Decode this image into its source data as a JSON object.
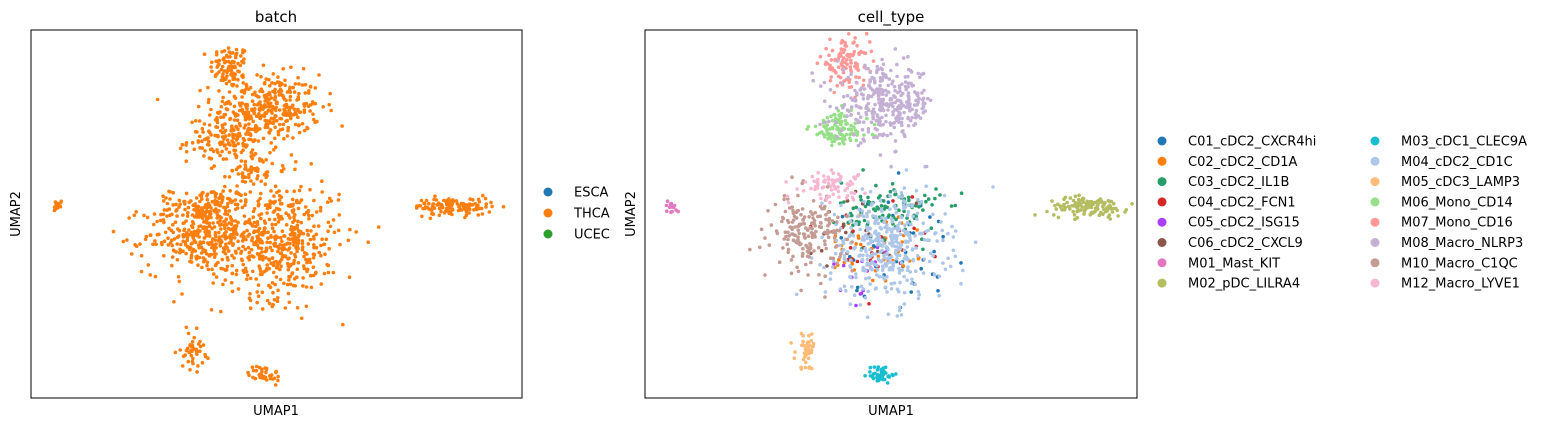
{
  "chart_data": [
    {
      "type": "scatter",
      "title": "batch",
      "xlabel": "UMAP1",
      "ylabel": "UMAP2",
      "xlim": [
        0,
        10
      ],
      "ylim": [
        0,
        10
      ],
      "grid": false,
      "legend_position": "right",
      "series": [
        {
          "name": "ESCA",
          "color": "#1f77b4",
          "clusters": []
        },
        {
          "name": "THCA",
          "color": "#ff7f0e",
          "clusters": [
            {
              "cx": 4.05,
              "cy": 9.0,
              "sx": 0.2,
              "sy": 0.3,
              "n": 90
            },
            {
              "cx": 4.8,
              "cy": 7.9,
              "sx": 0.55,
              "sy": 0.45,
              "n": 330
            },
            {
              "cx": 4.1,
              "cy": 7.0,
              "sx": 0.45,
              "sy": 0.3,
              "n": 160
            },
            {
              "cx": 4.5,
              "cy": 6.2,
              "sx": 0.2,
              "sy": 0.2,
              "n": 40
            },
            {
              "cx": 3.65,
              "cy": 5.2,
              "sx": 0.4,
              "sy": 0.25,
              "n": 110
            },
            {
              "cx": 3.4,
              "cy": 4.4,
              "sx": 0.55,
              "sy": 0.5,
              "n": 300
            },
            {
              "cx": 5.0,
              "cy": 4.3,
              "sx": 0.65,
              "sy": 0.8,
              "n": 520
            },
            {
              "cx": 0.55,
              "cy": 5.2,
              "sx": 0.07,
              "sy": 0.08,
              "n": 14
            },
            {
              "cx": 8.6,
              "cy": 5.2,
              "sx": 0.4,
              "sy": 0.12,
              "n": 120
            },
            {
              "cx": 3.3,
              "cy": 1.3,
              "sx": 0.12,
              "sy": 0.25,
              "n": 45
            },
            {
              "cx": 4.75,
              "cy": 0.65,
              "sx": 0.16,
              "sy": 0.12,
              "n": 40
            }
          ]
        },
        {
          "name": "UCEC",
          "color": "#2ca02c",
          "clusters": []
        }
      ]
    },
    {
      "type": "scatter",
      "title": "cell_type",
      "xlabel": "UMAP1",
      "ylabel": "UMAP2",
      "xlim": [
        0,
        10
      ],
      "ylim": [
        0,
        10
      ],
      "grid": false,
      "legend_position": "right",
      "legend_columns": 2,
      "series": [
        {
          "name": "C01_cDC2_CXCR4hi",
          "color": "#1f77b4",
          "clusters": [
            {
              "cx": 5.1,
              "cy": 4.1,
              "sx": 0.6,
              "sy": 0.7,
              "n": 50
            }
          ]
        },
        {
          "name": "C02_cDC2_CD1A",
          "color": "#ff7f0e",
          "clusters": [
            {
              "cx": 4.6,
              "cy": 4.0,
              "sx": 0.6,
              "sy": 0.7,
              "n": 45
            }
          ]
        },
        {
          "name": "C03_cDC2_IL1B",
          "color": "#279e68",
          "clusters": [
            {
              "cx": 5.0,
              "cy": 5.1,
              "sx": 0.5,
              "sy": 0.4,
              "n": 110
            }
          ]
        },
        {
          "name": "C04_cDC2_FCN1",
          "color": "#d62728",
          "clusters": [
            {
              "cx": 4.5,
              "cy": 4.3,
              "sx": 0.6,
              "sy": 0.6,
              "n": 25
            }
          ]
        },
        {
          "name": "C05_cDC2_ISG15",
          "color": "#aa40fc",
          "clusters": [
            {
              "cx": 4.6,
              "cy": 3.5,
              "sx": 0.4,
              "sy": 0.4,
              "n": 15
            }
          ]
        },
        {
          "name": "C06_cDC2_CXCL9",
          "color": "#8c564b",
          "clusters": [
            {
              "cx": 4.3,
              "cy": 4.6,
              "sx": 0.5,
              "sy": 0.6,
              "n": 20
            }
          ]
        },
        {
          "name": "M01_Mast_KIT",
          "color": "#e377c2",
          "clusters": [
            {
              "cx": 0.55,
              "cy": 5.2,
              "sx": 0.07,
              "sy": 0.08,
              "n": 16
            }
          ]
        },
        {
          "name": "M02_pDC_LILRA4",
          "color": "#b5bd61",
          "clusters": [
            {
              "cx": 9.0,
              "cy": 5.2,
              "sx": 0.4,
              "sy": 0.13,
              "n": 130
            }
          ]
        },
        {
          "name": "M03_cDC1_CLEC9A",
          "color": "#17becf",
          "clusters": [
            {
              "cx": 4.8,
              "cy": 0.65,
              "sx": 0.14,
              "sy": 0.12,
              "n": 45
            }
          ]
        },
        {
          "name": "M04_cDC2_CD1C",
          "color": "#aec7e8",
          "clusters": [
            {
              "cx": 4.9,
              "cy": 4.1,
              "sx": 0.6,
              "sy": 0.75,
              "n": 380
            }
          ]
        },
        {
          "name": "M05_cDC3_LAMP3",
          "color": "#ffbb78",
          "clusters": [
            {
              "cx": 3.3,
              "cy": 1.3,
              "sx": 0.12,
              "sy": 0.25,
              "n": 45
            }
          ]
        },
        {
          "name": "M06_Mono_CD14",
          "color": "#98df8a",
          "clusters": [
            {
              "cx": 3.95,
              "cy": 7.3,
              "sx": 0.3,
              "sy": 0.25,
              "n": 110
            }
          ]
        },
        {
          "name": "M07_Mono_CD16",
          "color": "#ff9896",
          "clusters": [
            {
              "cx": 4.05,
              "cy": 9.1,
              "sx": 0.25,
              "sy": 0.3,
              "n": 110
            }
          ]
        },
        {
          "name": "M08_Macro_NLRP3",
          "color": "#c5b0d5",
          "clusters": [
            {
              "cx": 4.9,
              "cy": 8.0,
              "sx": 0.5,
              "sy": 0.5,
              "n": 320
            }
          ]
        },
        {
          "name": "M10_Macro_C1QC",
          "color": "#c49c94",
          "clusters": [
            {
              "cx": 3.3,
              "cy": 4.5,
              "sx": 0.35,
              "sy": 0.5,
              "n": 180
            }
          ]
        },
        {
          "name": "M12_Macro_LYVE1",
          "color": "#f7b6d2",
          "clusters": [
            {
              "cx": 3.75,
              "cy": 5.8,
              "sx": 0.35,
              "sy": 0.2,
              "n": 70
            }
          ]
        }
      ]
    }
  ]
}
